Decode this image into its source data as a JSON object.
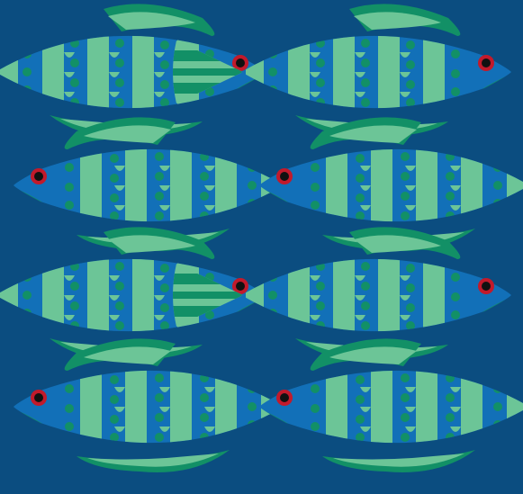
{
  "pattern": {
    "subject": "fish",
    "rows": 4,
    "fish_per_row": 2,
    "row_directions": [
      "right",
      "left",
      "right",
      "left"
    ]
  },
  "colors": {
    "background": "#0b4d80",
    "body_blue": "#1270b8",
    "stripe_light": "#6cc597",
    "stripe_dark": "#129066",
    "eye_ring": "#c21a2b",
    "eye_pupil": "#111111"
  },
  "icons": {
    "fish": "fish-icon",
    "eye": "eye-icon",
    "tail": "tail-fin-icon",
    "dorsal": "dorsal-fin-icon"
  }
}
